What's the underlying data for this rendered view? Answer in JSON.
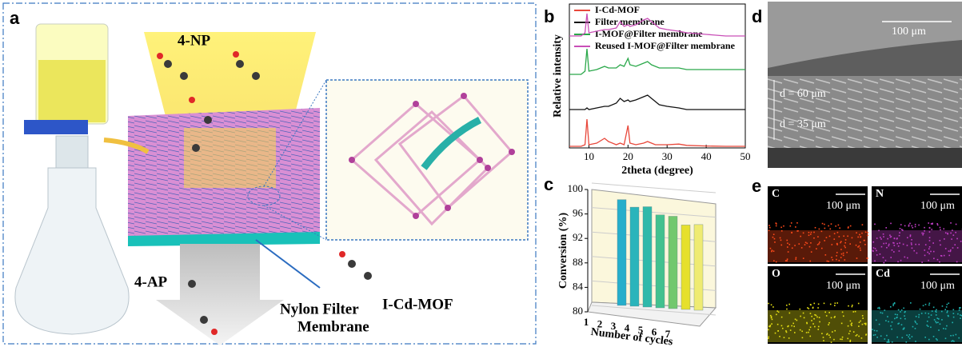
{
  "panels": {
    "a": {
      "label": "a",
      "top_label": "4-NP",
      "bottom_label": "4-AP",
      "membrane_label": [
        "Nylon Filter",
        "Membrane"
      ],
      "inset_label": "I-Cd-MOF"
    },
    "b": {
      "label": "b"
    },
    "c": {
      "label": "c"
    },
    "d": {
      "label": "d",
      "scale_bar": "100 μm",
      "thickness_labels": [
        "d = 60 μm",
        "d = 35 μm"
      ]
    },
    "e": {
      "label": "e",
      "maps": [
        {
          "element": "C",
          "scale_bar": "100 μm",
          "color": "#ff4a1a"
        },
        {
          "element": "N",
          "scale_bar": "100 μm",
          "color": "#c23ec8"
        },
        {
          "element": "O",
          "scale_bar": "100 μm",
          "color": "#e6e014"
        },
        {
          "element": "Cd",
          "scale_bar": "100 μm",
          "color": "#1fb3b0"
        }
      ]
    }
  },
  "chart_data": [
    {
      "type": "line",
      "xlabel": "2theta (degree)",
      "ylabel": "Relative intensity",
      "legend": "top-left",
      "xlim": [
        5,
        50
      ],
      "xticks": [
        10,
        20,
        30,
        40,
        50
      ],
      "ylim": [
        0,
        4.5
      ],
      "x": [
        5,
        8,
        9,
        9.5,
        10,
        12,
        14,
        15,
        17,
        18,
        19,
        20,
        20.5,
        22,
        24,
        25,
        26,
        27,
        28,
        30,
        33,
        35,
        40,
        45,
        50
      ],
      "series": [
        {
          "name": "I-Cd-MOF",
          "color": "#e8473a",
          "values": [
            0.05,
            0.05,
            0.1,
            0.9,
            0.1,
            0.15,
            0.3,
            0.2,
            0.1,
            0.15,
            0.1,
            0.7,
            0.15,
            0.1,
            0.15,
            0.2,
            0.15,
            0.1,
            0.1,
            0.1,
            0.12,
            0.08,
            0.06,
            0.05,
            0.05
          ]
        },
        {
          "name": "Filter membrane",
          "color": "#111111",
          "values": [
            1.2,
            1.2,
            1.2,
            1.25,
            1.2,
            1.25,
            1.3,
            1.3,
            1.4,
            1.55,
            1.45,
            1.5,
            1.45,
            1.5,
            1.6,
            1.65,
            1.55,
            1.45,
            1.35,
            1.3,
            1.25,
            1.2,
            1.2,
            1.2,
            1.2
          ]
        },
        {
          "name": "I-MOF@Filter membrane",
          "color": "#2aa84a",
          "values": [
            2.3,
            2.3,
            2.4,
            3.1,
            2.4,
            2.45,
            2.55,
            2.5,
            2.5,
            2.6,
            2.55,
            2.8,
            2.6,
            2.55,
            2.65,
            2.7,
            2.6,
            2.55,
            2.5,
            2.5,
            2.5,
            2.45,
            2.45,
            2.45,
            2.45
          ]
        },
        {
          "name": "Reused I-MOF@Filter membrane",
          "color": "#c94fb7",
          "values": [
            3.5,
            3.5,
            3.6,
            4.2,
            3.6,
            3.65,
            3.7,
            3.7,
            3.75,
            3.95,
            3.8,
            3.85,
            3.8,
            3.85,
            4.0,
            4.05,
            3.95,
            3.85,
            3.75,
            3.7,
            3.65,
            3.6,
            3.55,
            3.5,
            3.5
          ]
        }
      ]
    },
    {
      "type": "bar",
      "xlabel": "Number of cycles",
      "ylabel": "Conversion (%)",
      "categories": [
        "1",
        "2",
        "3",
        "4",
        "5",
        "6",
        "7"
      ],
      "values": [
        97.3,
        96.2,
        96.4,
        95.2,
        95.1,
        93.8,
        94.0
      ],
      "colors": [
        "#26aecb",
        "#2ab4bb",
        "#2fb9aa",
        "#42c18f",
        "#72c86e",
        "#e6e02c",
        "#efeb72"
      ],
      "ylim": [
        80,
        100
      ],
      "yticks": [
        80,
        84,
        88,
        92,
        96,
        100
      ],
      "grid": true
    }
  ]
}
